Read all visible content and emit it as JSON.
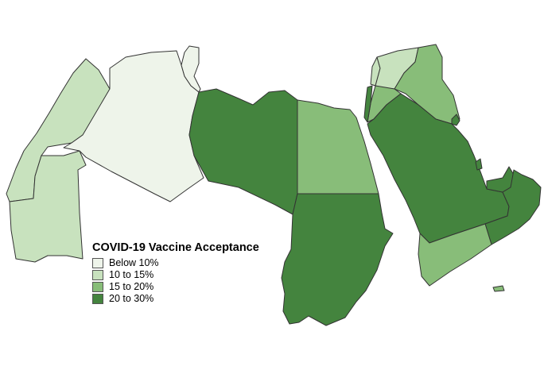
{
  "legend": {
    "title": "COVID-19 Vaccine Acceptance",
    "classes": [
      {
        "label": "Below 10%",
        "color": "#eef4ea"
      },
      {
        "label": "10 to 15%",
        "color": "#c8e2be"
      },
      {
        "label": "15 to 20%",
        "color": "#88bd79"
      },
      {
        "label": "20 to 30%",
        "color": "#44843e"
      }
    ]
  }
}
